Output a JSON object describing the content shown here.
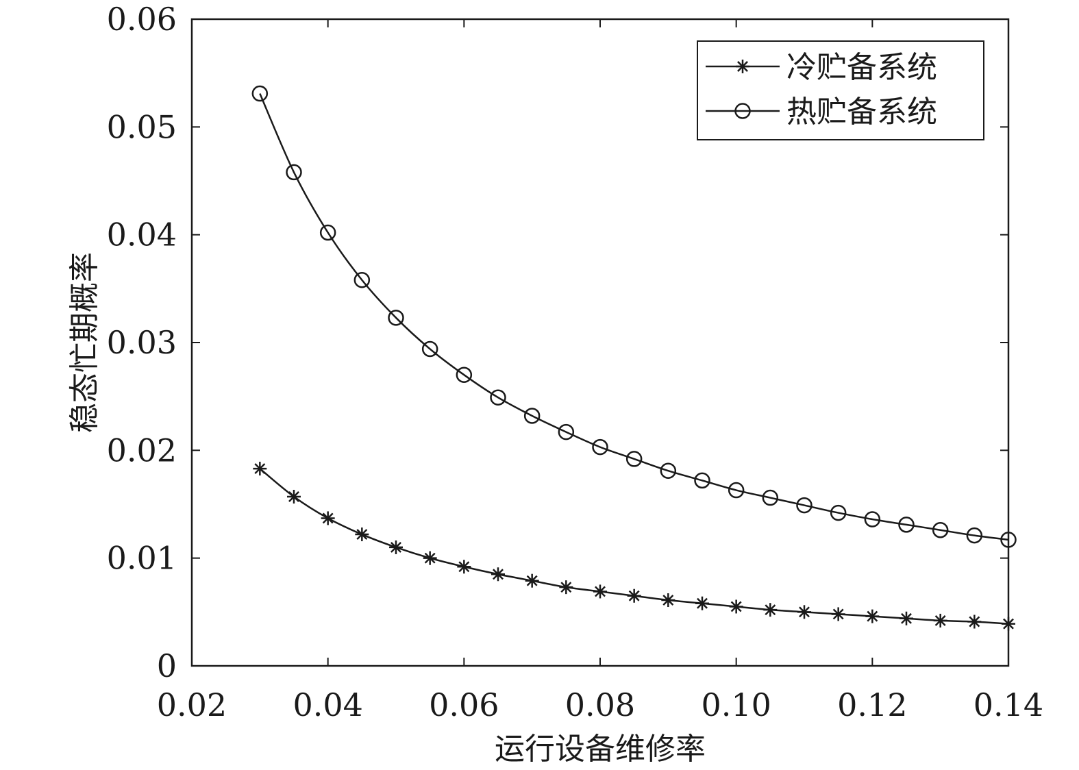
{
  "chart_data": {
    "type": "line",
    "xlabel": "运行设备维修率",
    "ylabel": "稳态忙期概率",
    "xlim": [
      0.02,
      0.14
    ],
    "ylim": [
      0,
      0.06
    ],
    "x_ticks": [
      "0.02",
      "0.04",
      "0.06",
      "0.08",
      "0.10",
      "0.12",
      "0.14"
    ],
    "y_ticks": [
      "0",
      "0.01",
      "0.02",
      "0.03",
      "0.04",
      "0.05",
      "0.06"
    ],
    "grid": false,
    "legend_position": "top-right",
    "line_color": "#1a1a1a",
    "x": [
      0.03,
      0.035,
      0.04,
      0.045,
      0.05,
      0.055,
      0.06,
      0.065,
      0.07,
      0.075,
      0.08,
      0.085,
      0.09,
      0.095,
      0.1,
      0.105,
      0.11,
      0.115,
      0.12,
      0.125,
      0.13,
      0.135,
      0.14
    ],
    "series": [
      {
        "name": "冷贮备系统",
        "marker": "asterisk",
        "values": [
          0.0183,
          0.0157,
          0.0137,
          0.0122,
          0.011,
          0.01,
          0.0092,
          0.0085,
          0.0079,
          0.0073,
          0.0069,
          0.0065,
          0.0061,
          0.0058,
          0.0055,
          0.0052,
          0.005,
          0.0048,
          0.0046,
          0.0044,
          0.0042,
          0.0041,
          0.0039
        ]
      },
      {
        "name": "热贮备系统",
        "marker": "circle",
        "values": [
          0.0531,
          0.0458,
          0.0402,
          0.0358,
          0.0323,
          0.0294,
          0.027,
          0.0249,
          0.0232,
          0.0217,
          0.0203,
          0.0192,
          0.0181,
          0.0172,
          0.0163,
          0.0156,
          0.0149,
          0.0142,
          0.0136,
          0.0131,
          0.0126,
          0.0121,
          0.0117
        ]
      }
    ]
  }
}
